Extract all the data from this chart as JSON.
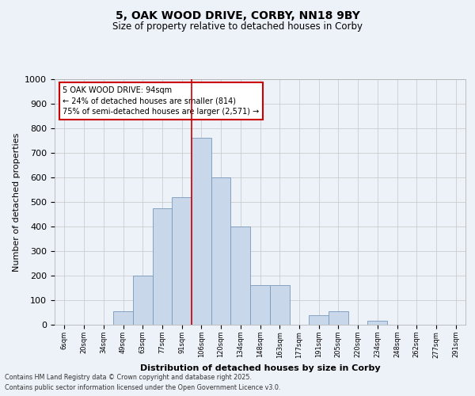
{
  "title1": "5, OAK WOOD DRIVE, CORBY, NN18 9BY",
  "title2": "Size of property relative to detached houses in Corby",
  "xlabel": "Distribution of detached houses by size in Corby",
  "ylabel": "Number of detached properties",
  "bin_labels": [
    "6sqm",
    "20sqm",
    "34sqm",
    "49sqm",
    "63sqm",
    "77sqm",
    "91sqm",
    "106sqm",
    "120sqm",
    "134sqm",
    "148sqm",
    "163sqm",
    "177sqm",
    "191sqm",
    "205sqm",
    "220sqm",
    "234sqm",
    "248sqm",
    "262sqm",
    "277sqm",
    "291sqm"
  ],
  "counts": [
    0,
    0,
    0,
    55,
    200,
    475,
    520,
    760,
    600,
    400,
    160,
    160,
    0,
    40,
    55,
    0,
    15,
    0,
    0,
    0,
    0
  ],
  "bar_color": "#c8d8ea",
  "bar_edge_color": "#7799bb",
  "vline_x": 7.0,
  "vline_color": "#cc0000",
  "ylim": [
    0,
    1000
  ],
  "yticks": [
    0,
    100,
    200,
    300,
    400,
    500,
    600,
    700,
    800,
    900,
    1000
  ],
  "annotation_title": "5 OAK WOOD DRIVE: 94sqm",
  "annotation_line1": "← 24% of detached houses are smaller (814)",
  "annotation_line2": "75% of semi-detached houses are larger (2,571) →",
  "annotation_box_color": "#ffffff",
  "annotation_box_edge": "#cc0000",
  "bg_color": "#edf1f8",
  "footer1": "Contains HM Land Registry data © Crown copyright and database right 2025.",
  "footer2": "Contains public sector information licensed under the Open Government Licence v3.0.",
  "grid_color": "#cccccc"
}
